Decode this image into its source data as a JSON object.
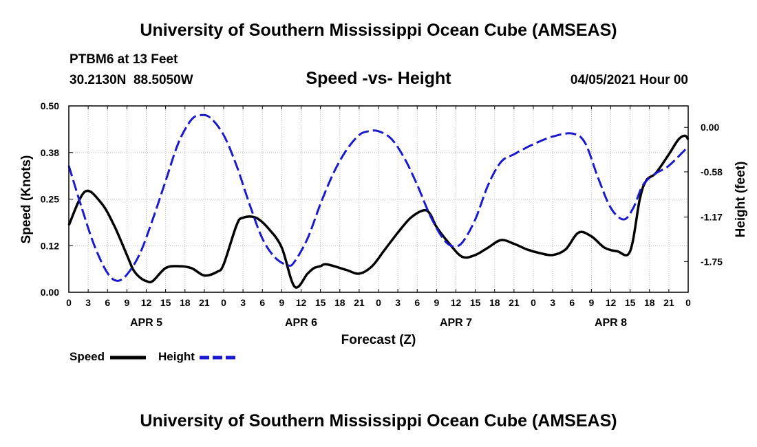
{
  "header": {
    "title": "University of Southern Mississippi Ocean Cube (AMSEAS)",
    "station": "PTBM6 at 13 Feet",
    "coordinates": "30.2130N  88.5050W",
    "subtitle": "Speed -vs- Height",
    "datetime": "04/05/2021 Hour 00"
  },
  "footer": {
    "title": "University of Southern Mississippi Ocean Cube (AMSEAS)"
  },
  "legend": {
    "speed_label": "Speed",
    "height_label": "Height"
  },
  "colors": {
    "speed": "#000000",
    "height": "#1a1acc",
    "grid": "#bbbbbb"
  },
  "chart_data": {
    "type": "line",
    "title": "Speed -vs- Height",
    "xlabel": "Forecast (Z)",
    "ylabel_left": "Speed (Knots)",
    "ylabel_right": "Height (feet)",
    "xlim": [
      0,
      96
    ],
    "ylim_left": [
      0,
      0.5
    ],
    "ylim_right": [
      -2.15,
      0.28
    ],
    "x_tick_labels": [
      "0",
      "3",
      "6",
      "9",
      "12",
      "15",
      "18",
      "21",
      "0",
      "3",
      "6",
      "9",
      "12",
      "15",
      "18",
      "21",
      "0",
      "3",
      "6",
      "9",
      "12",
      "15",
      "18",
      "21",
      "0",
      "3",
      "6",
      "9",
      "12",
      "15",
      "18",
      "21",
      "0"
    ],
    "day_labels": [
      {
        "label": "APR 5",
        "x": 12
      },
      {
        "label": "APR 6",
        "x": 36
      },
      {
        "label": "APR 7",
        "x": 60
      },
      {
        "label": "APR 8",
        "x": 84
      }
    ],
    "y_left_ticks": [
      "0.00",
      "0.12",
      "0.25",
      "0.38",
      "0.50"
    ],
    "y_left_tick_values": [
      0,
      0.125,
      0.25,
      0.375,
      0.5
    ],
    "y_right_ticks": [
      "0.00",
      "-0.58",
      "-1.17",
      "-1.75"
    ],
    "y_right_tick_values": [
      0,
      -0.58,
      -1.17,
      -1.75
    ],
    "grid": true,
    "series": [
      {
        "name": "Speed",
        "axis": "left",
        "style": "solid",
        "x": [
          0,
          2.5,
          5,
          7,
          9,
          10,
          11,
          12,
          13,
          15,
          17,
          19,
          21,
          23,
          24,
          26,
          27,
          29,
          31,
          33,
          35,
          37,
          38,
          39,
          40,
          43,
          45,
          47,
          49,
          51,
          53,
          55,
          56,
          57,
          59,
          61,
          63,
          65,
          67,
          69,
          71,
          73,
          75,
          77,
          79,
          81,
          83,
          85,
          87,
          88.5,
          89.5,
          91,
          93,
          94.5,
          95.5,
          96
        ],
        "values": [
          0.18,
          0.27,
          0.24,
          0.18,
          0.1,
          0.06,
          0.04,
          0.03,
          0.03,
          0.065,
          0.07,
          0.065,
          0.045,
          0.055,
          0.075,
          0.18,
          0.2,
          0.2,
          0.17,
          0.12,
          0.015,
          0.05,
          0.065,
          0.07,
          0.075,
          0.06,
          0.05,
          0.07,
          0.115,
          0.16,
          0.2,
          0.22,
          0.21,
          0.175,
          0.13,
          0.095,
          0.1,
          0.12,
          0.14,
          0.13,
          0.115,
          0.105,
          0.1,
          0.115,
          0.16,
          0.15,
          0.12,
          0.11,
          0.11,
          0.25,
          0.3,
          0.32,
          0.37,
          0.41,
          0.42,
          0.41
        ]
      },
      {
        "name": "Height",
        "axis": "right",
        "style": "dashed",
        "x": [
          0,
          2,
          4,
          6,
          7.5,
          9,
          11,
          13,
          15,
          17,
          19,
          20.5,
          22,
          24,
          26,
          28,
          30,
          32,
          34,
          35,
          37,
          39,
          41,
          43,
          45,
          46.5,
          48,
          50,
          52,
          54,
          56,
          58,
          59.5,
          61,
          63,
          65,
          67,
          69,
          72,
          75,
          78,
          80,
          82,
          84,
          86,
          87.5,
          89,
          91,
          93,
          96
        ],
        "values": [
          -0.5,
          -1.05,
          -1.55,
          -1.9,
          -2.0,
          -1.92,
          -1.65,
          -1.2,
          -0.7,
          -0.2,
          0.1,
          0.16,
          0.12,
          -0.1,
          -0.5,
          -1.0,
          -1.45,
          -1.7,
          -1.8,
          -1.75,
          -1.45,
          -1.0,
          -0.6,
          -0.3,
          -0.1,
          -0.05,
          -0.05,
          -0.15,
          -0.4,
          -0.75,
          -1.15,
          -1.45,
          -1.55,
          -1.5,
          -1.2,
          -0.75,
          -0.45,
          -0.35,
          -0.22,
          -0.12,
          -0.08,
          -0.2,
          -0.65,
          -1.05,
          -1.2,
          -1.05,
          -0.75,
          -0.6,
          -0.5,
          -0.25
        ]
      }
    ]
  }
}
